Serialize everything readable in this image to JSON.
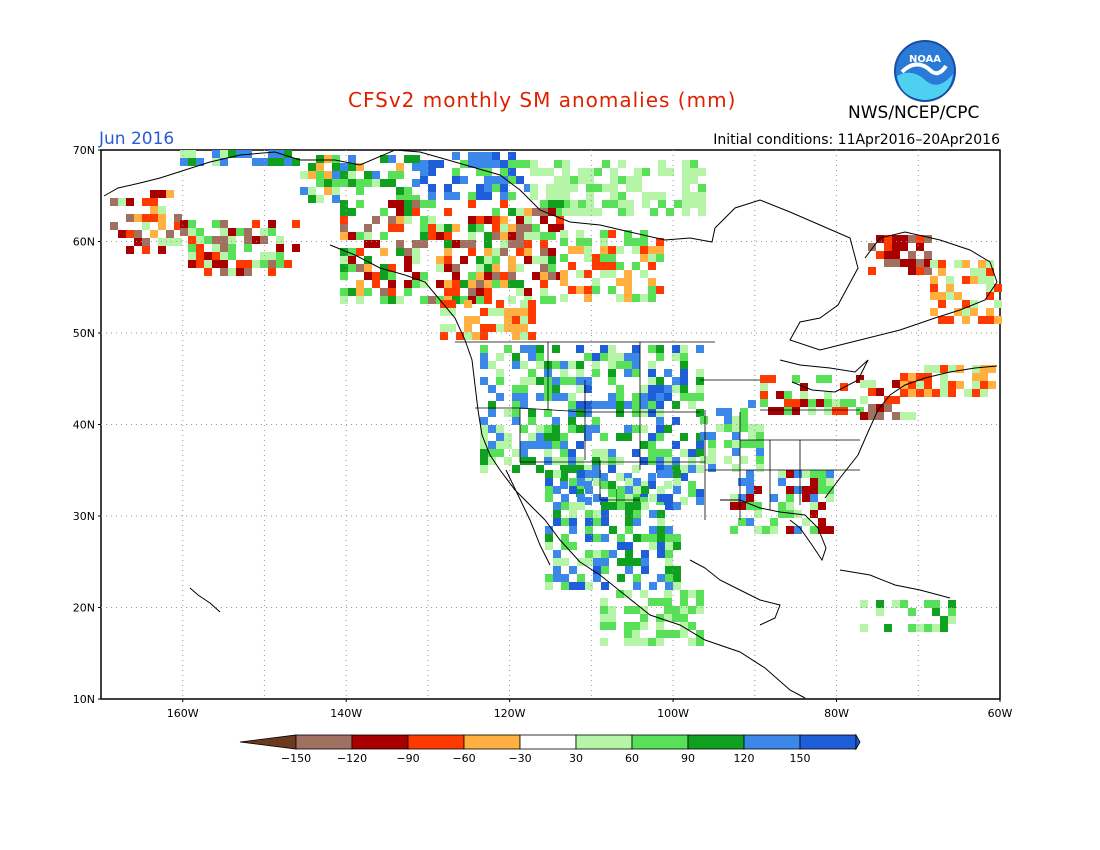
{
  "header": {
    "title": "CFSv2 monthly SM anomalies (mm)",
    "agency": "NWS/NCEP/CPC",
    "month": "Jun 2016",
    "initial_conditions": "Initial conditions: 11Apr2016–20Apr2016",
    "logo_text": "NOAA",
    "title_color": "#dd2200",
    "month_color": "#2a5bd7"
  },
  "map": {
    "lat_labels": [
      "70N",
      "60N",
      "50N",
      "40N",
      "30N",
      "20N",
      "10N"
    ],
    "lon_labels": [
      "160W",
      "140W",
      "120W",
      "100W",
      "80W",
      "60W"
    ],
    "lon_range": [
      -170,
      -60
    ],
    "lat_range": [
      10,
      70
    ],
    "grid": "dotted"
  },
  "legend": {
    "labels": [
      "−150",
      "−120",
      "−90",
      "−60",
      "−30",
      "30",
      "60",
      "90",
      "120",
      "150"
    ],
    "colors": [
      "#6b3a1e",
      "#a07060",
      "#a80000",
      "#ff3a00",
      "#ffb040",
      "#ffffff",
      "#b6f5a8",
      "#58e058",
      "#10a020",
      "#3c88e8",
      "#1e5ed8"
    ]
  }
}
